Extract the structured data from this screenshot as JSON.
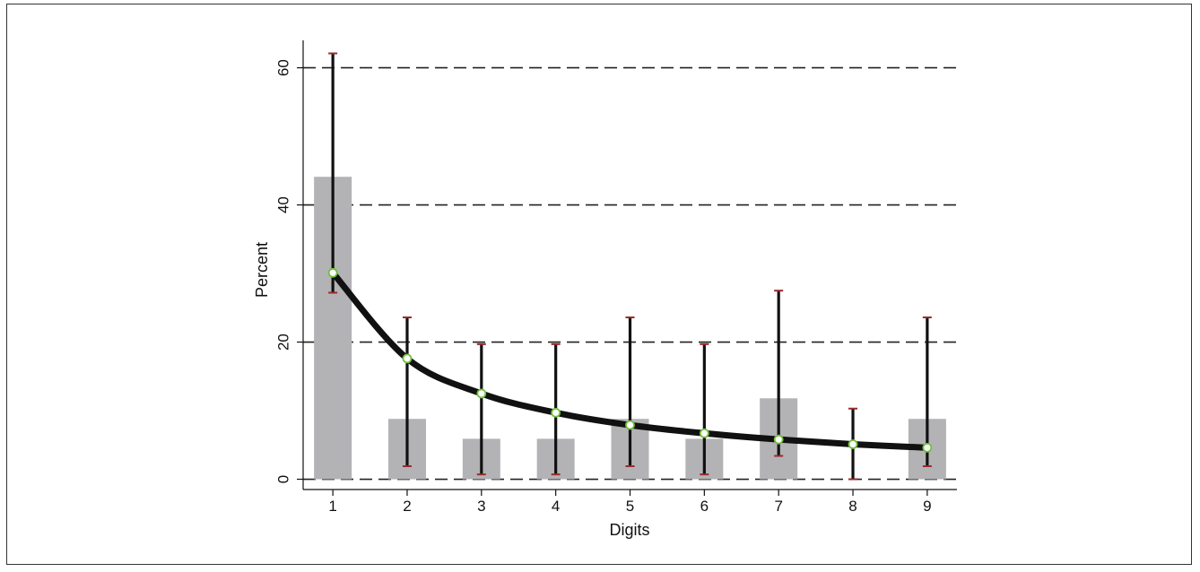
{
  "chart_data": {
    "type": "bar",
    "title": "",
    "xlabel": "Digits",
    "ylabel": "Percent",
    "categories": [
      "1",
      "2",
      "3",
      "4",
      "5",
      "6",
      "7",
      "8",
      "9"
    ],
    "xlim": [
      0.6,
      9.4
    ],
    "ylim": [
      -1.5,
      64
    ],
    "yticks": [
      0,
      20,
      40,
      60
    ],
    "grid": "dashed horizontal at y ticks",
    "legend": "none",
    "series": [
      {
        "type": "bar",
        "values": [
          44.1,
          8.8,
          5.9,
          5.9,
          8.8,
          5.9,
          11.8,
          0,
          8.8
        ]
      },
      {
        "type": "line",
        "values": [
          30.1,
          17.6,
          12.5,
          9.7,
          7.9,
          6.7,
          5.8,
          5.1,
          4.6
        ],
        "error_low": [
          27.2,
          1.9,
          0.7,
          0.7,
          1.9,
          0.7,
          3.4,
          0,
          1.9
        ],
        "error_high": [
          62.1,
          23.6,
          19.7,
          19.7,
          23.6,
          19.7,
          27.5,
          10.3,
          23.6
        ]
      }
    ],
    "colors": {
      "bar": "#b3b3b6",
      "line": "#111111",
      "marker_fill": "#ffffff",
      "marker_edge": "#6fbf3a",
      "error_cap": "#9a2a2a",
      "grid": "#222222",
      "text": "#111111"
    }
  }
}
